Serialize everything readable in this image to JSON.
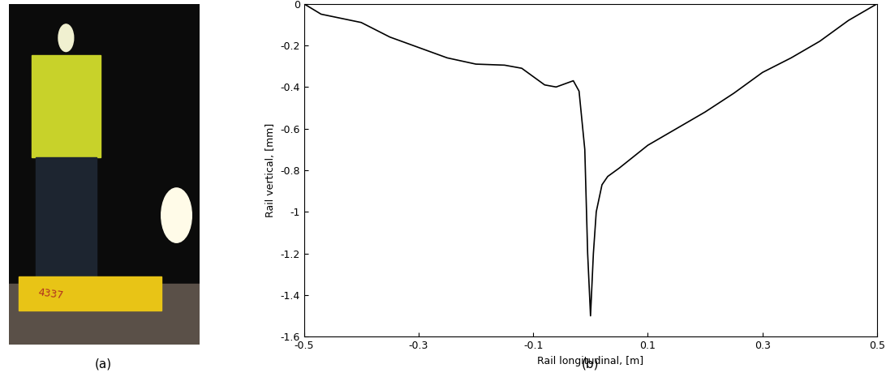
{
  "photo": {
    "caption": "(a)",
    "marking": "4337"
  },
  "chart_data": {
    "type": "line",
    "caption": "(b)",
    "x_label": "Rail longitudinal, [m]",
    "y_label": "Rail vertical, [mm]",
    "xlim": [
      -0.5,
      0.5
    ],
    "ylim": [
      -1.6,
      0
    ],
    "xticks": [
      -0.5,
      -0.3,
      -0.1,
      0.1,
      0.3,
      0.5
    ],
    "yticks": [
      -1.6,
      -1.4,
      -1.2,
      -1,
      -0.8,
      -0.6,
      -0.4,
      -0.2,
      0
    ],
    "grid": false,
    "series": [
      {
        "color": "#000000",
        "line_style": "solid",
        "x": [
          -0.5,
          -0.47,
          -0.4,
          -0.35,
          -0.3,
          -0.25,
          -0.2,
          -0.15,
          -0.12,
          -0.1,
          -0.08,
          -0.06,
          -0.04,
          -0.03,
          -0.02,
          -0.01,
          -0.005,
          0,
          0.005,
          0.01,
          0.02,
          0.03,
          0.05,
          0.1,
          0.15,
          0.2,
          0.25,
          0.3,
          0.35,
          0.4,
          0.45,
          0.5
        ],
        "values": [
          0,
          -0.05,
          -0.09,
          -0.16,
          -0.21,
          -0.26,
          -0.29,
          -0.295,
          -0.31,
          -0.35,
          -0.39,
          -0.4,
          -0.38,
          -0.37,
          -0.42,
          -0.7,
          -1.2,
          -1.5,
          -1.2,
          -1.0,
          -0.87,
          -0.83,
          -0.79,
          -0.68,
          -0.6,
          -0.52,
          -0.43,
          -0.33,
          -0.26,
          -0.18,
          -0.08,
          0
        ]
      }
    ]
  }
}
